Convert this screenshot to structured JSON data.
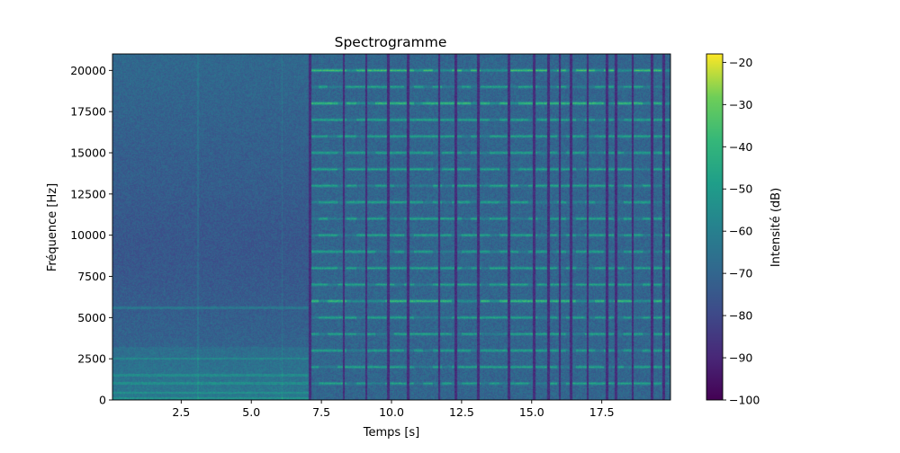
{
  "chart_data": {
    "type": "heatmap",
    "title": "Spectrogramme",
    "xlabel": "Temps [s]",
    "ylabel": "Fréquence [Hz]",
    "colorbar_label": "Intensité (dB)",
    "colormap": "viridis",
    "xlim": [
      0.05,
      19.95
    ],
    "ylim": [
      0,
      21000
    ],
    "clim": [
      -100,
      -18
    ],
    "x_ticks": [
      2.5,
      5.0,
      7.5,
      10.0,
      12.5,
      15.0,
      17.5
    ],
    "x_tick_labels": [
      "2.5",
      "5.0",
      "7.5",
      "10.0",
      "12.5",
      "15.0",
      "17.5"
    ],
    "y_ticks": [
      0,
      2500,
      5000,
      7500,
      10000,
      12500,
      15000,
      17500,
      20000
    ],
    "y_tick_labels": [
      "0",
      "2500",
      "5000",
      "7500",
      "10000",
      "12500",
      "15000",
      "17500",
      "20000"
    ],
    "colorbar_ticks": [
      -100,
      -90,
      -80,
      -70,
      -60,
      -50,
      -40,
      -30,
      -20
    ],
    "colorbar_tick_labels": [
      "−100",
      "−90",
      "−80",
      "−70",
      "−60",
      "−50",
      "−40",
      "−30",
      "−20"
    ],
    "noise_segment": {
      "t_start": 0.05,
      "t_end": 7.05,
      "bands_hz": [
        100,
        450,
        1000,
        1500,
        2500,
        5600
      ],
      "vertical_lines_s": [
        3.1,
        6.1
      ]
    },
    "tone_segment": {
      "t_start": 7.05,
      "t_end": 19.95,
      "frequencies_hz": [
        1000,
        2000,
        3000,
        4000,
        5000,
        6000,
        7000,
        8000,
        9000,
        10000,
        11000,
        12000,
        13000,
        14000,
        15000,
        16000,
        17000,
        18000,
        19000,
        20000
      ],
      "strong_frequencies_hz": [
        6000,
        18000,
        20000
      ],
      "gap_times_s": [
        7.1,
        8.3,
        9.1,
        9.9,
        10.6,
        11.7,
        12.3,
        13.1,
        14.2,
        15.1,
        15.6,
        16.0,
        16.4,
        17.0,
        17.7,
        18.0,
        18.6,
        19.3,
        19.7
      ]
    }
  }
}
